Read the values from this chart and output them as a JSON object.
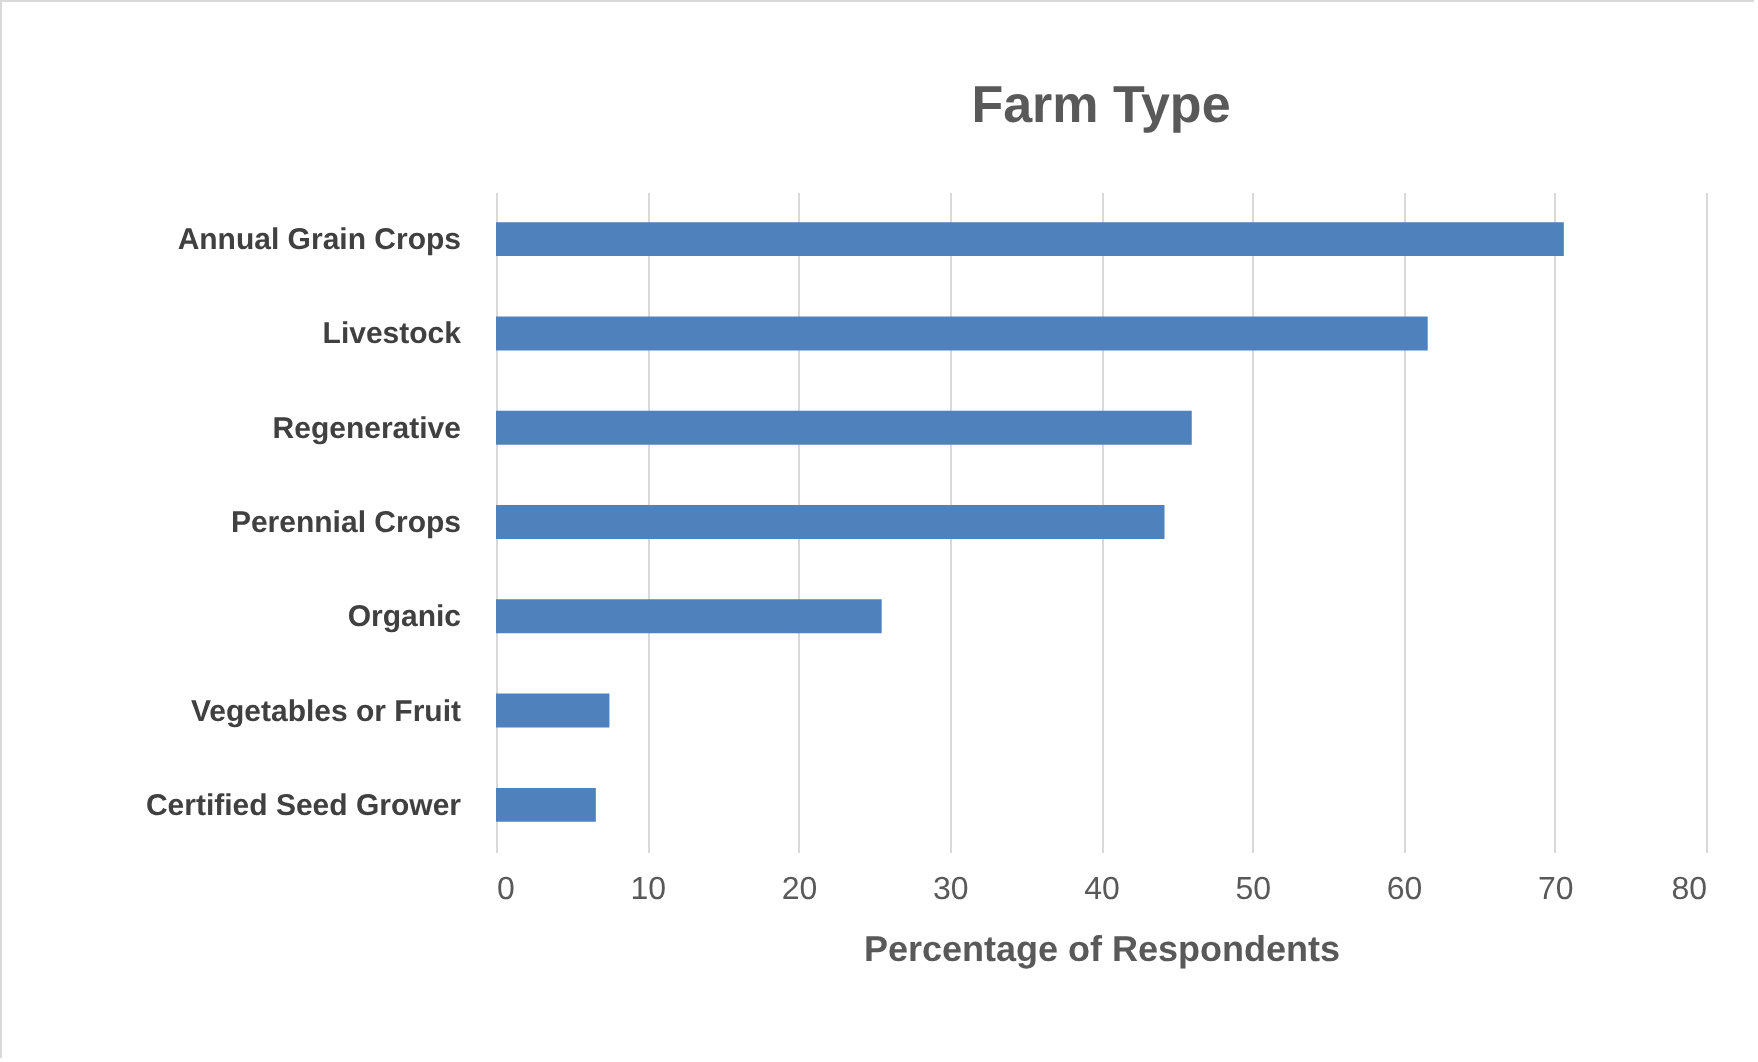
{
  "chart_data": {
    "type": "bar",
    "orientation": "horizontal",
    "title": "Farm Type",
    "xlabel": "Percentage of Respondents",
    "categories": [
      "Annual Grain Crops",
      "Livestock",
      "Regenerative",
      "Perennial Crops",
      "Organic",
      "Vegetables or Fruit",
      "Certified Seed Grower"
    ],
    "values": [
      70.6,
      61.6,
      46.0,
      44.2,
      25.5,
      7.5,
      6.6
    ],
    "color": "#4f81bd",
    "xlim": [
      0,
      80
    ],
    "xticks": [
      0,
      10,
      20,
      30,
      40,
      50,
      60,
      70,
      80
    ],
    "grid": "x"
  }
}
